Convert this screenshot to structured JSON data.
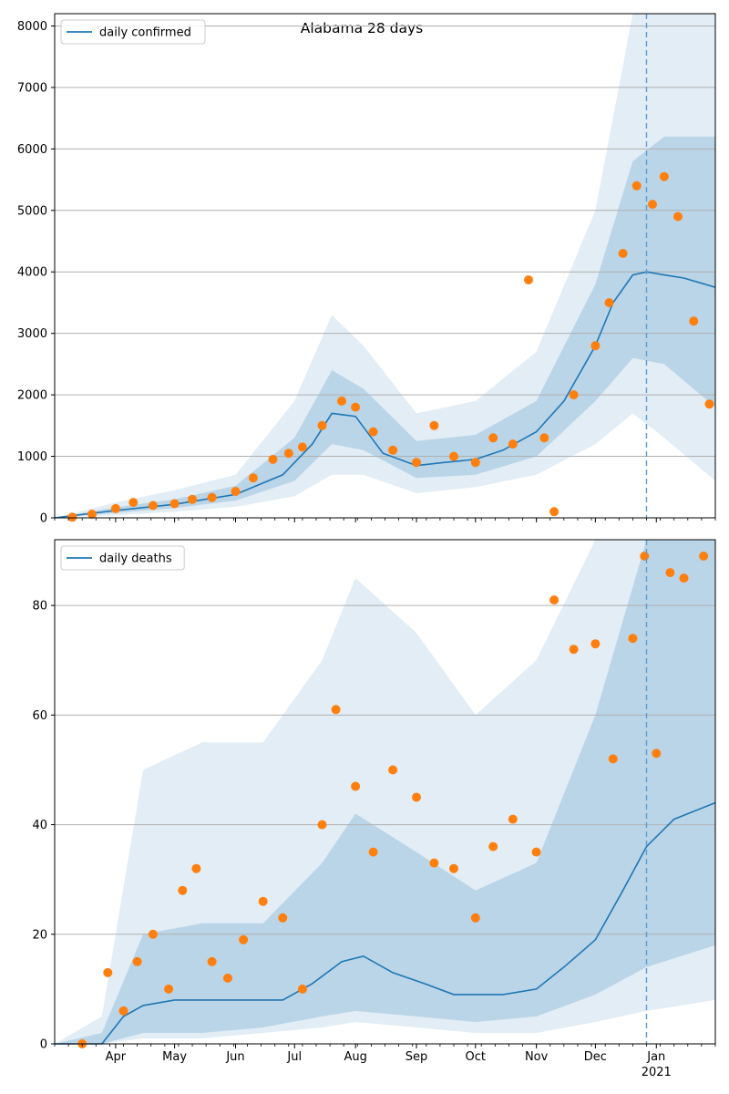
{
  "chart_data": [
    {
      "type": "line",
      "title": "Alabama 28 days",
      "legend": {
        "entries": [
          "daily confirmed"
        ],
        "placement": "top-left"
      },
      "x_range": [
        "2020-03-01",
        "2021-01-31"
      ],
      "xtick_months": [
        "Apr",
        "May",
        "Jun",
        "Jul",
        "Aug",
        "Sep",
        "Oct",
        "Nov",
        "Dec",
        "Jan"
      ],
      "xtick_year": "2021",
      "ylim": [
        0,
        8200
      ],
      "yticks": [
        0,
        1000,
        2000,
        3000,
        4000,
        5000,
        6000,
        7000,
        8000
      ],
      "grid": "horizontal",
      "forecast_start": "2020-12-27",
      "series": [
        {
          "name": "daily confirmed",
          "kind": "line",
          "color": "#1f77b4",
          "x": [
            "2020-03-01",
            "2020-04-01",
            "2020-05-01",
            "2020-06-01",
            "2020-06-25",
            "2020-07-10",
            "2020-07-20",
            "2020-08-01",
            "2020-08-15",
            "2020-09-01",
            "2020-09-15",
            "2020-10-01",
            "2020-10-15",
            "2020-11-01",
            "2020-11-15",
            "2020-12-01",
            "2020-12-10",
            "2020-12-20",
            "2020-12-27",
            "2021-01-05",
            "2021-01-15",
            "2021-01-31"
          ],
          "y": [
            0,
            120,
            220,
            380,
            700,
            1200,
            1700,
            1650,
            1050,
            850,
            900,
            950,
            1100,
            1400,
            1900,
            2800,
            3500,
            3950,
            4000,
            3950,
            3900,
            3750
          ]
        }
      ],
      "bands": {
        "color": "#1f77b4",
        "x": [
          "2020-03-01",
          "2020-04-01",
          "2020-05-01",
          "2020-06-01",
          "2020-07-01",
          "2020-07-20",
          "2020-08-05",
          "2020-09-01",
          "2020-10-01",
          "2020-11-01",
          "2020-12-01",
          "2020-12-20",
          "2021-01-05",
          "2021-01-31"
        ],
        "outer_low": [
          0,
          40,
          100,
          180,
          350,
          700,
          700,
          400,
          500,
          700,
          1200,
          1700,
          1300,
          600
        ],
        "outer_high": [
          0,
          250,
          450,
          700,
          1900,
          3300,
          2800,
          1700,
          1900,
          2700,
          5000,
          8200,
          8200,
          8200
        ],
        "inner_low": [
          0,
          80,
          160,
          280,
          600,
          1200,
          1100,
          650,
          700,
          1000,
          1900,
          2600,
          2500,
          1800
        ],
        "inner_high": [
          0,
          170,
          300,
          520,
          1300,
          2400,
          2100,
          1250,
          1350,
          1900,
          3800,
          5800,
          6200,
          6200
        ]
      },
      "observed_points": {
        "color": "#ff7f0e",
        "x": [
          "2020-03-10",
          "2020-03-20",
          "2020-04-01",
          "2020-04-10",
          "2020-04-20",
          "2020-05-01",
          "2020-05-10",
          "2020-05-20",
          "2020-06-01",
          "2020-06-10",
          "2020-06-20",
          "2020-06-28",
          "2020-07-05",
          "2020-07-15",
          "2020-07-25",
          "2020-08-01",
          "2020-08-10",
          "2020-08-20",
          "2020-09-01",
          "2020-09-10",
          "2020-09-20",
          "2020-10-01",
          "2020-10-10",
          "2020-10-20",
          "2020-10-28",
          "2020-11-05",
          "2020-11-10",
          "2020-11-20",
          "2020-12-01",
          "2020-12-08",
          "2020-12-15",
          "2020-12-22",
          "2020-12-30",
          "2021-01-05",
          "2021-01-12",
          "2021-01-20",
          "2021-01-28"
        ],
        "y": [
          10,
          60,
          150,
          250,
          200,
          230,
          300,
          330,
          430,
          650,
          950,
          1050,
          1150,
          1500,
          1900,
          1800,
          1400,
          1100,
          900,
          1500,
          1000,
          900,
          1300,
          1200,
          3870,
          1300,
          100,
          2000,
          2800,
          3500,
          4300,
          5400,
          5100,
          5550,
          4900,
          3200,
          1850
        ]
      }
    },
    {
      "type": "line",
      "legend": {
        "entries": [
          "daily deaths"
        ],
        "placement": "top-left"
      },
      "x_range": [
        "2020-03-01",
        "2021-01-31"
      ],
      "xtick_months": [
        "Apr",
        "May",
        "Jun",
        "Jul",
        "Aug",
        "Sep",
        "Oct",
        "Nov",
        "Dec",
        "Jan"
      ],
      "xtick_year": "2021",
      "ylim": [
        0,
        92
      ],
      "yticks": [
        0,
        20,
        40,
        60,
        80
      ],
      "grid": "horizontal",
      "forecast_start": "2020-12-27",
      "series": [
        {
          "name": "daily deaths",
          "kind": "line",
          "color": "#1f77b4",
          "x": [
            "2020-03-01",
            "2020-03-25",
            "2020-04-05",
            "2020-04-15",
            "2020-05-01",
            "2020-06-01",
            "2020-06-25",
            "2020-07-10",
            "2020-07-25",
            "2020-08-05",
            "2020-08-20",
            "2020-09-05",
            "2020-09-20",
            "2020-10-01",
            "2020-10-15",
            "2020-11-01",
            "2020-11-15",
            "2020-12-01",
            "2020-12-15",
            "2020-12-27",
            "2021-01-10",
            "2021-01-31"
          ],
          "y": [
            0,
            0,
            5,
            7,
            8,
            8,
            8,
            11,
            15,
            16,
            13,
            11,
            9,
            9,
            9,
            10,
            14,
            19,
            28,
            36,
            41,
            44
          ]
        }
      ],
      "bands": {
        "color": "#1f77b4",
        "x": [
          "2020-03-01",
          "2020-03-25",
          "2020-04-15",
          "2020-05-15",
          "2020-06-15",
          "2020-07-15",
          "2020-08-01",
          "2020-09-01",
          "2020-10-01",
          "2020-11-01",
          "2020-12-01",
          "2020-12-27",
          "2021-01-31"
        ],
        "outer_low": [
          0,
          0,
          1,
          1,
          2,
          3,
          4,
          3,
          2,
          2,
          4,
          6,
          8
        ],
        "outer_high": [
          0,
          5,
          50,
          55,
          55,
          70,
          85,
          75,
          60,
          70,
          92,
          92,
          92
        ],
        "inner_low": [
          0,
          0,
          2,
          2,
          3,
          5,
          6,
          5,
          4,
          5,
          9,
          14,
          18
        ],
        "inner_high": [
          0,
          2,
          20,
          22,
          22,
          33,
          42,
          35,
          28,
          33,
          60,
          92,
          92
        ]
      },
      "observed_points": {
        "color": "#ff7f0e",
        "x": [
          "2020-03-15",
          "2020-03-28",
          "2020-04-05",
          "2020-04-12",
          "2020-04-20",
          "2020-04-28",
          "2020-05-05",
          "2020-05-12",
          "2020-05-20",
          "2020-05-28",
          "2020-06-05",
          "2020-06-15",
          "2020-06-25",
          "2020-07-05",
          "2020-07-15",
          "2020-07-22",
          "2020-08-01",
          "2020-08-10",
          "2020-08-20",
          "2020-09-01",
          "2020-09-10",
          "2020-09-20",
          "2020-10-01",
          "2020-10-10",
          "2020-10-20",
          "2020-11-01",
          "2020-11-10",
          "2020-11-20",
          "2020-12-01",
          "2020-12-10",
          "2020-12-20",
          "2020-12-26",
          "2021-01-01",
          "2021-01-08",
          "2021-01-15",
          "2021-01-25"
        ],
        "y": [
          0,
          13,
          6,
          15,
          20,
          10,
          28,
          32,
          15,
          12,
          19,
          26,
          23,
          10,
          40,
          61,
          47,
          35,
          50,
          45,
          33,
          32,
          23,
          36,
          41,
          35,
          81,
          72,
          73,
          52,
          74,
          89,
          53,
          86,
          85,
          89
        ]
      }
    }
  ]
}
